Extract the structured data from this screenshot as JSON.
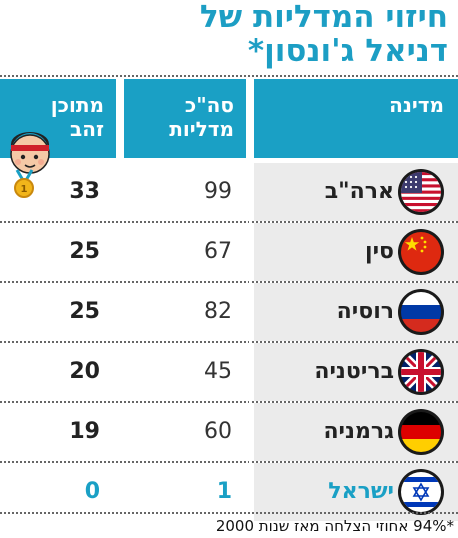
{
  "title": {
    "line1": "חיזוי המדליות של",
    "line2": "דניאל ג'ונסון*"
  },
  "headers": {
    "country": "מדינה",
    "total_line1": "סה\"כ",
    "total_line2": "מדליות",
    "expected_line1": "מתוכן",
    "expected_line2": "זהב"
  },
  "chart_data": {
    "type": "table",
    "columns": [
      "מדינה",
      "סה\"כ מדליות",
      "מתוכן זהב"
    ],
    "rows": [
      {
        "country": "ארה\"ב",
        "total": "99",
        "gold": "33",
        "flag": "usa-flag-icon"
      },
      {
        "country": "סין",
        "total": "67",
        "gold": "25",
        "flag": "china-flag-icon"
      },
      {
        "country": "רוסיה",
        "total": "82",
        "gold": "25",
        "flag": "russia-flag-icon"
      },
      {
        "country": "בריטניה",
        "total": "45",
        "gold": "20",
        "flag": "uk-flag-icon"
      },
      {
        "country": "גרמניה",
        "total": "60",
        "gold": "19",
        "flag": "germany-flag-icon"
      },
      {
        "country": "ישראל",
        "total": "1",
        "gold": "0",
        "flag": "israel-flag-icon"
      }
    ]
  },
  "colors": {
    "accent": "#1aa0c5",
    "row_bg": "#ebebeb"
  },
  "footnote": "*94% אחוזי הצלחה מאז שנות 2000"
}
